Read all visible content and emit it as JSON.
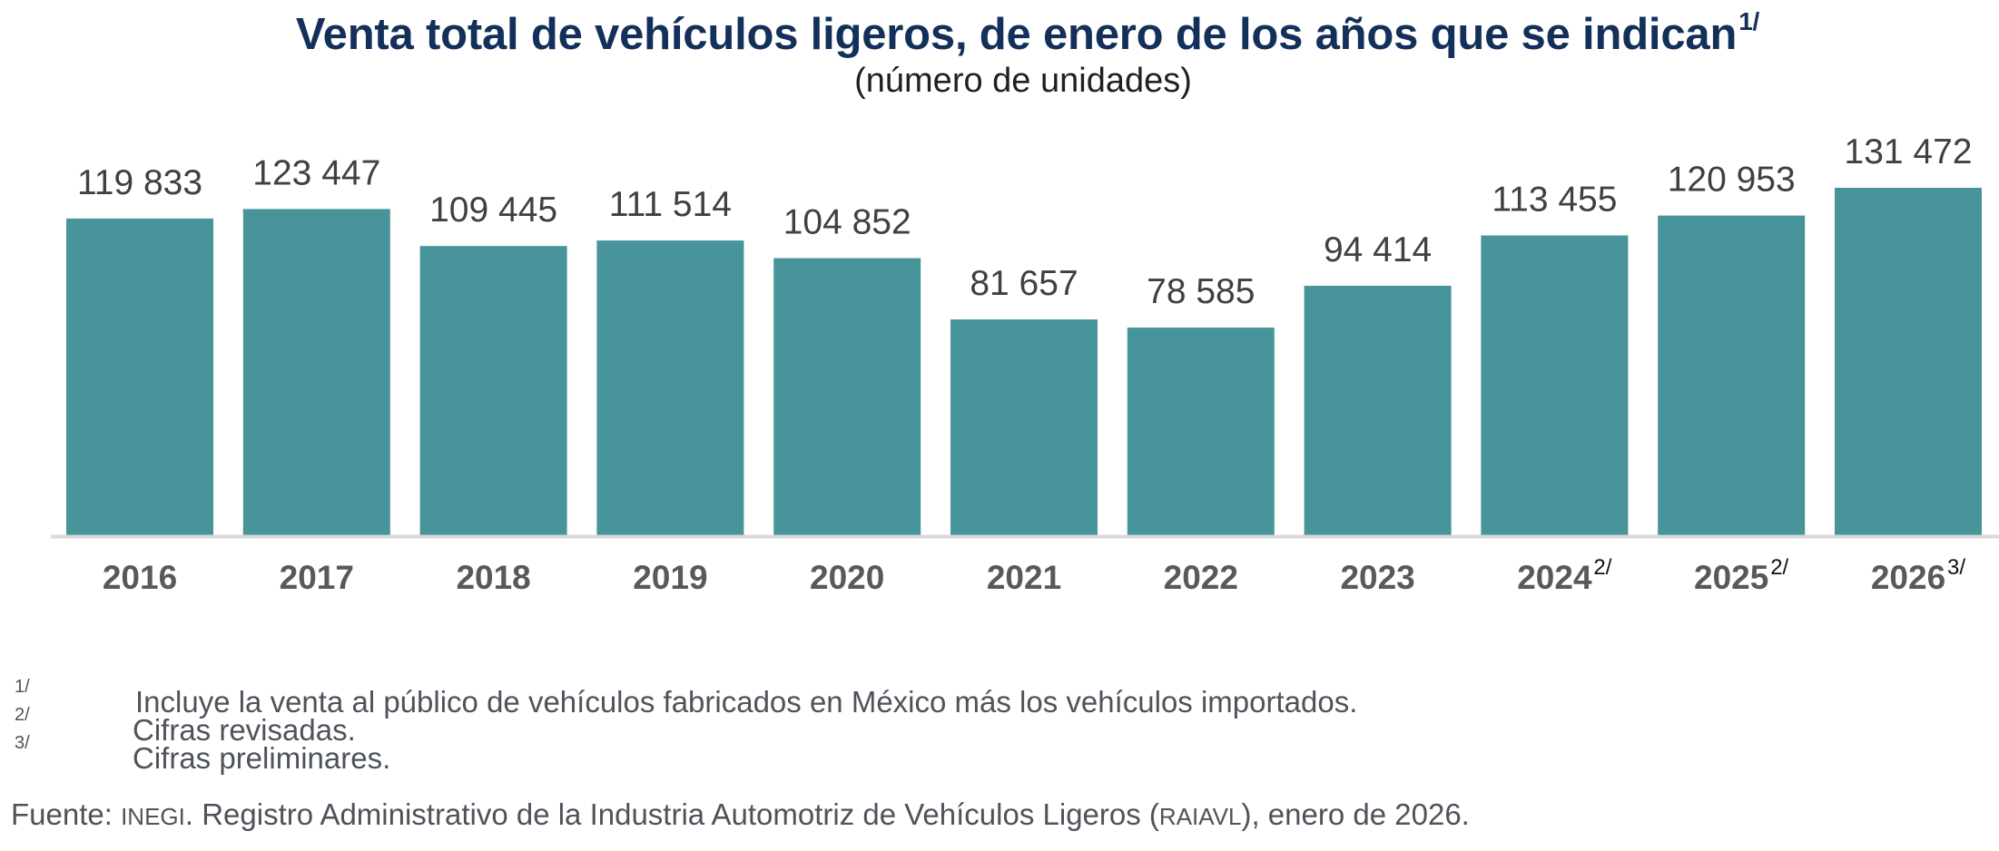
{
  "title": {
    "text": "Venta total de vehículos ligeros, de enero de los años que se indican",
    "footnote_ref": "1/",
    "subtitle": "(número de unidades)"
  },
  "colors": {
    "bar": "#47959A",
    "axis": "#D9D9D9",
    "title": "#13305A"
  },
  "chart_data": {
    "type": "bar",
    "title": "Venta total de vehículos ligeros, de enero de los años que se indican",
    "subtitle": "(número de unidades)",
    "xlabel": "",
    "ylabel": "",
    "categories": [
      "2016",
      "2017",
      "2018",
      "2019",
      "2020",
      "2021",
      "2022",
      "2023",
      "2024",
      "2025",
      "2026"
    ],
    "category_footnotes": [
      "",
      "",
      "",
      "",
      "",
      "",
      "",
      "",
      "2/",
      "2/",
      "3/"
    ],
    "values": [
      119833,
      123447,
      109445,
      111514,
      104852,
      81657,
      78585,
      94414,
      113455,
      120953,
      131472
    ],
    "value_labels": [
      "119 833",
      "123 447",
      "109 445",
      "111 514",
      "104 852",
      "81 657",
      "78 585",
      "94 414",
      "113 455",
      "120 953",
      "131 472"
    ],
    "ylim": [
      0,
      131472
    ],
    "grid": false,
    "legend": "none",
    "y_axis_visible": false
  },
  "footnotes": [
    {
      "marker": "1/",
      "text": "Incluye la venta al público de vehículos fabricados en México más los vehículos importados."
    },
    {
      "marker": "2/",
      "text": "Cifras revisadas."
    },
    {
      "marker": "3/",
      "text": "Cifras preliminares."
    }
  ],
  "source": {
    "label": "Fuente: ",
    "org": "INEGI",
    "text_1": ". Registro Administrativo de la Industria Automotriz de Vehículos Ligeros (",
    "acronym": "RAIAVL",
    "text_2": "), enero de 2026."
  }
}
